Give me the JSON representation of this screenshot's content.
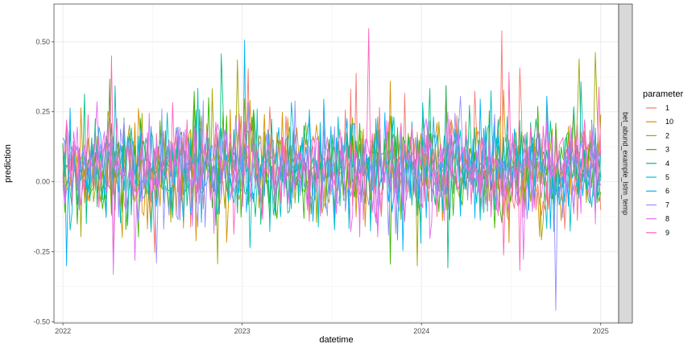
{
  "chart_data": {
    "type": "line",
    "title": "",
    "xlabel": "datetime",
    "ylabel": "prediction",
    "facet_label": "bet_abund_example_lstm_temp",
    "legend_title": "parameter",
    "legend_position": "right",
    "grid": true,
    "xlim": [
      2021.95,
      2025.1
    ],
    "ylim": [
      -0.505,
      0.635
    ],
    "x_ticks": [
      2022,
      2023,
      2024,
      2025
    ],
    "x_tick_labels": [
      "2022",
      "2023",
      "2024",
      "2025"
    ],
    "y_ticks": [
      -0.5,
      -0.25,
      0.0,
      0.25,
      0.5
    ],
    "y_tick_labels": [
      "-0.50",
      "-0.25",
      "0.00",
      "0.25",
      "0.50"
    ],
    "x_range": [
      2022.0,
      2025.0
    ],
    "n_points_per_series": 300,
    "series": [
      {
        "name": "1",
        "color": "#F8766D",
        "mean": 0.05,
        "sd": 0.085
      },
      {
        "name": "10",
        "color": "#D89000",
        "mean": 0.05,
        "sd": 0.095
      },
      {
        "name": "2",
        "color": "#A3A500",
        "mean": 0.05,
        "sd": 0.09
      },
      {
        "name": "3",
        "color": "#39B600",
        "mean": 0.05,
        "sd": 0.09
      },
      {
        "name": "4",
        "color": "#00BF7D",
        "mean": 0.05,
        "sd": 0.09
      },
      {
        "name": "5",
        "color": "#00BFC4",
        "mean": 0.04,
        "sd": 0.09
      },
      {
        "name": "6",
        "color": "#00B0F6",
        "mean": 0.04,
        "sd": 0.09
      },
      {
        "name": "7",
        "color": "#9590FF",
        "mean": 0.04,
        "sd": 0.095
      },
      {
        "name": "8",
        "color": "#E76BF3",
        "mean": 0.05,
        "sd": 0.09
      },
      {
        "name": "9",
        "color": "#FF62BC",
        "mean": 0.06,
        "sd": 0.075
      }
    ]
  }
}
